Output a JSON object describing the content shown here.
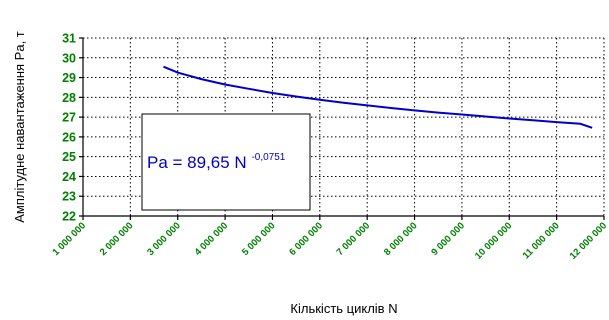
{
  "chart_data": {
    "type": "line",
    "title": "",
    "xlabel": "Кількість циклів N",
    "ylabel": "Амплітудне навантаження Pa, т",
    "xlim": [
      1000000,
      12000000
    ],
    "ylim": [
      22,
      31
    ],
    "x_ticks": [
      1000000,
      2000000,
      3000000,
      4000000,
      5000000,
      6000000,
      7000000,
      8000000,
      9000000,
      10000000,
      11000000,
      12000000
    ],
    "x_tick_labels": [
      "1 000 000",
      "2 000 000",
      "3 000 000",
      "4 000 000",
      "5 000 000",
      "6 000 000",
      "7 000 000",
      "8 000 000",
      "9 000 000",
      "10 000 000",
      "11 000 000",
      "12 000 000"
    ],
    "y_ticks": [
      22,
      23,
      24,
      25,
      26,
      27,
      28,
      29,
      30,
      31
    ],
    "y_tick_labels": [
      "22",
      "23",
      "24",
      "25",
      "26",
      "27",
      "28",
      "29",
      "30",
      "31"
    ],
    "grid": true,
    "series": [
      {
        "x": [
          2700000,
          3000000,
          3500000,
          4000000,
          4500000,
          5000000,
          5500000,
          6000000,
          6500000,
          7000000,
          7500000,
          8000000,
          8500000,
          9000000,
          9500000,
          10000000,
          10500000,
          11000000,
          11500000,
          11750000
        ],
        "values": [
          29.55,
          29.25,
          28.92,
          28.65,
          28.43,
          28.22,
          28.04,
          27.88,
          27.73,
          27.59,
          27.46,
          27.34,
          27.23,
          27.13,
          27.03,
          26.93,
          26.84,
          26.75,
          26.66,
          26.46
        ]
      }
    ],
    "annotation": {
      "base": "Pa = 89,65 N ",
      "exponent": "-0,0751"
    },
    "colors": {
      "line": "#0000cc",
      "equation": "#0000cc",
      "ticks": "#008000",
      "grid": "#000000"
    }
  }
}
